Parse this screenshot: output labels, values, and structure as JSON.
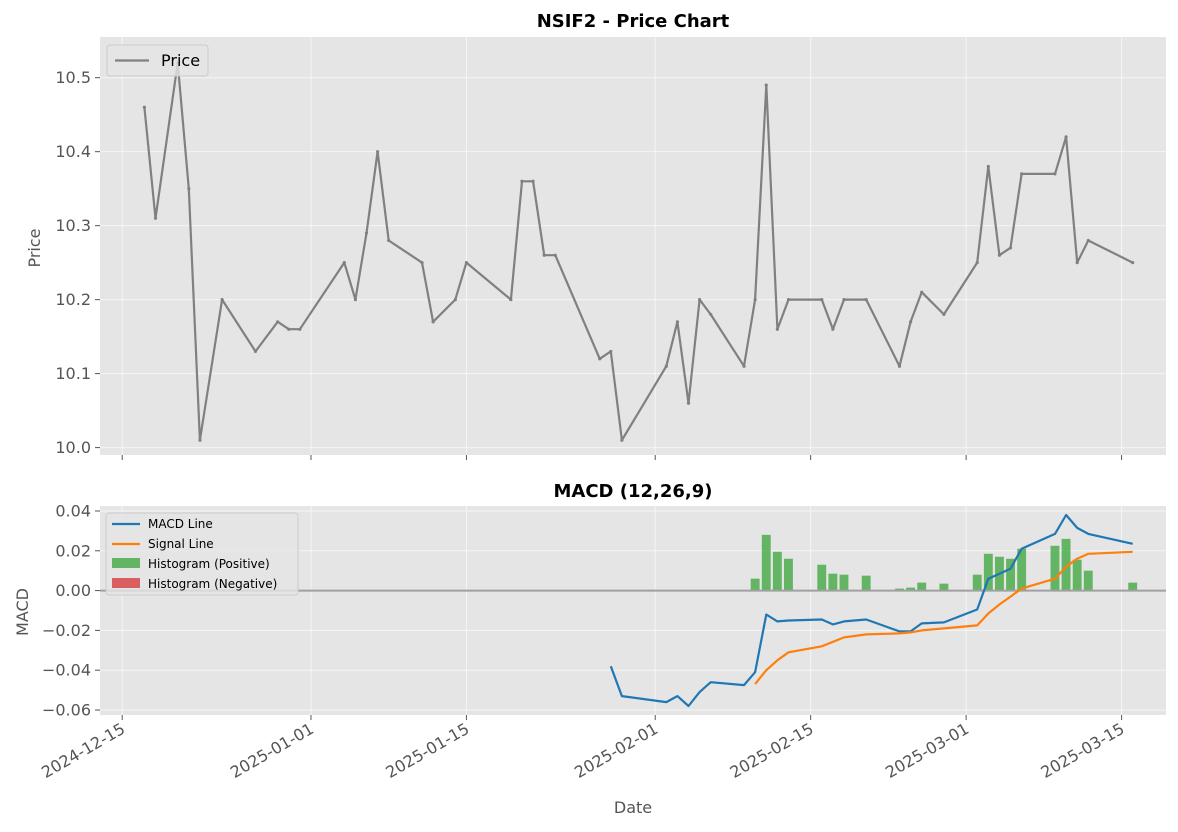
{
  "colors": {
    "price": "#808080",
    "macd": "#1f77b4",
    "signal": "#ff7f0e",
    "hist_pos": "#2ca02c",
    "hist_neg": "#d62728",
    "axes_bg": "#e5e5e5",
    "zero_line": "#a0a0a0"
  },
  "chart_data": [
    {
      "type": "line",
      "title": "NSIF2 - Price Chart",
      "xlabel": "",
      "ylabel": "Price",
      "ylim": [
        9.99,
        10.555
      ],
      "yticks": [
        10.0,
        10.1,
        10.2,
        10.3,
        10.4,
        10.5
      ],
      "ytick_labels": [
        "10.0",
        "10.1",
        "10.2",
        "10.3",
        "10.4",
        "10.5"
      ],
      "grid": true,
      "legend": "upper-left",
      "series": [
        {
          "name": "Price",
          "x": [
            "2024-12-17",
            "2024-12-18",
            "2024-12-20",
            "2024-12-21",
            "2024-12-22",
            "2024-12-24",
            "2024-12-27",
            "2024-12-29",
            "2024-12-30",
            "2024-12-31",
            "2025-01-04",
            "2025-01-05",
            "2025-01-06",
            "2025-01-07",
            "2025-01-08",
            "2025-01-11",
            "2025-01-12",
            "2025-01-14",
            "2025-01-15",
            "2025-01-19",
            "2025-01-20",
            "2025-01-21",
            "2025-01-22",
            "2025-01-23",
            "2025-01-27",
            "2025-01-28",
            "2025-01-29",
            "2025-02-02",
            "2025-02-03",
            "2025-02-04",
            "2025-02-05",
            "2025-02-06",
            "2025-02-09",
            "2025-02-10",
            "2025-02-11",
            "2025-02-12",
            "2025-02-13",
            "2025-02-16",
            "2025-02-17",
            "2025-02-18",
            "2025-02-20",
            "2025-02-23",
            "2025-02-24",
            "2025-02-25",
            "2025-02-27",
            "2025-03-02",
            "2025-03-03",
            "2025-03-04",
            "2025-03-05",
            "2025-03-06",
            "2025-03-09",
            "2025-03-10",
            "2025-03-11",
            "2025-03-12",
            "2025-03-16"
          ],
          "y": [
            10.46,
            10.31,
            10.52,
            10.35,
            10.01,
            10.2,
            10.13,
            10.17,
            10.16,
            10.16,
            10.25,
            10.2,
            10.29,
            10.4,
            10.28,
            10.25,
            10.17,
            10.2,
            10.25,
            10.2,
            10.36,
            10.36,
            10.26,
            10.26,
            10.12,
            10.13,
            10.01,
            10.11,
            10.17,
            10.06,
            10.2,
            10.18,
            10.11,
            10.2,
            10.49,
            10.16,
            10.2,
            10.2,
            10.16,
            10.2,
            10.2,
            10.11,
            10.17,
            10.21,
            10.18,
            10.25,
            10.38,
            10.26,
            10.27,
            10.37,
            10.37,
            10.42,
            10.25,
            10.28,
            10.25
          ]
        }
      ]
    },
    {
      "type": "line",
      "title": "MACD (12,26,9)",
      "xlabel": "Date",
      "ylabel": "MACD",
      "ylim": [
        -0.0625,
        0.0425
      ],
      "yticks": [
        -0.06,
        -0.04,
        -0.02,
        0.0,
        0.02,
        0.04
      ],
      "ytick_labels": [
        "−0.06",
        "−0.04",
        "−0.02",
        "0.00",
        "0.02",
        "0.04"
      ],
      "xticks": [
        "2024-12-15",
        "2025-01-01",
        "2025-01-15",
        "2025-02-01",
        "2025-02-15",
        "2025-03-01",
        "2025-03-15"
      ],
      "xlim": [
        "2024-12-13",
        "2025-03-19"
      ],
      "grid": true,
      "legend": "upper-left",
      "series": [
        {
          "name": "MACD Line",
          "x": [
            "2025-01-28",
            "2025-01-29",
            "2025-02-02",
            "2025-02-03",
            "2025-02-04",
            "2025-02-05",
            "2025-02-06",
            "2025-02-09",
            "2025-02-10",
            "2025-02-11",
            "2025-02-12",
            "2025-02-13",
            "2025-02-16",
            "2025-02-17",
            "2025-02-18",
            "2025-02-20",
            "2025-02-23",
            "2025-02-24",
            "2025-02-25",
            "2025-02-27",
            "2025-03-02",
            "2025-03-03",
            "2025-03-04",
            "2025-03-05",
            "2025-03-06",
            "2025-03-09",
            "2025-03-10",
            "2025-03-11",
            "2025-03-12",
            "2025-03-16"
          ],
          "y": [
            -0.038,
            -0.053,
            -0.056,
            -0.053,
            -0.058,
            -0.051,
            -0.046,
            -0.0475,
            -0.041,
            -0.012,
            -0.0155,
            -0.015,
            -0.0145,
            -0.017,
            -0.0155,
            -0.0145,
            -0.0205,
            -0.0205,
            -0.0165,
            -0.016,
            -0.0095,
            0.006,
            0.0085,
            0.011,
            0.021,
            0.0285,
            0.038,
            0.0315,
            0.0285,
            0.0235
          ]
        },
        {
          "name": "Signal Line",
          "x": [
            "2025-02-10",
            "2025-02-11",
            "2025-02-12",
            "2025-02-13",
            "2025-02-16",
            "2025-02-18",
            "2025-02-20",
            "2025-02-23",
            "2025-02-24",
            "2025-02-25",
            "2025-02-27",
            "2025-03-02",
            "2025-03-03",
            "2025-03-04",
            "2025-03-05",
            "2025-03-06",
            "2025-03-09",
            "2025-03-10",
            "2025-03-11",
            "2025-03-12",
            "2025-03-16"
          ],
          "y": [
            -0.047,
            -0.04,
            -0.035,
            -0.031,
            -0.028,
            -0.0235,
            -0.022,
            -0.0215,
            -0.021,
            -0.02,
            -0.019,
            -0.0175,
            -0.0115,
            -0.007,
            -0.003,
            0.001,
            0.006,
            0.012,
            0.016,
            0.0185,
            0.0195
          ]
        },
        {
          "name": "Histogram (Positive)",
          "type": "bar",
          "x": [
            "2025-02-10",
            "2025-02-11",
            "2025-02-12",
            "2025-02-13",
            "2025-02-16",
            "2025-02-17",
            "2025-02-18",
            "2025-02-20",
            "2025-02-23",
            "2025-02-24",
            "2025-02-25",
            "2025-02-27",
            "2025-03-02",
            "2025-03-03",
            "2025-03-04",
            "2025-03-05",
            "2025-03-06",
            "2025-03-09",
            "2025-03-10",
            "2025-03-11",
            "2025-03-12",
            "2025-03-16"
          ],
          "y": [
            0.006,
            0.028,
            0.0195,
            0.016,
            0.013,
            0.0085,
            0.008,
            0.0075,
            0.001,
            0.0015,
            0.004,
            0.0035,
            0.008,
            0.0185,
            0.017,
            0.016,
            0.021,
            0.0225,
            0.026,
            0.0155,
            0.01,
            0.004
          ]
        },
        {
          "name": "Histogram (Negative)",
          "type": "bar",
          "x": [],
          "y": []
        }
      ]
    }
  ]
}
